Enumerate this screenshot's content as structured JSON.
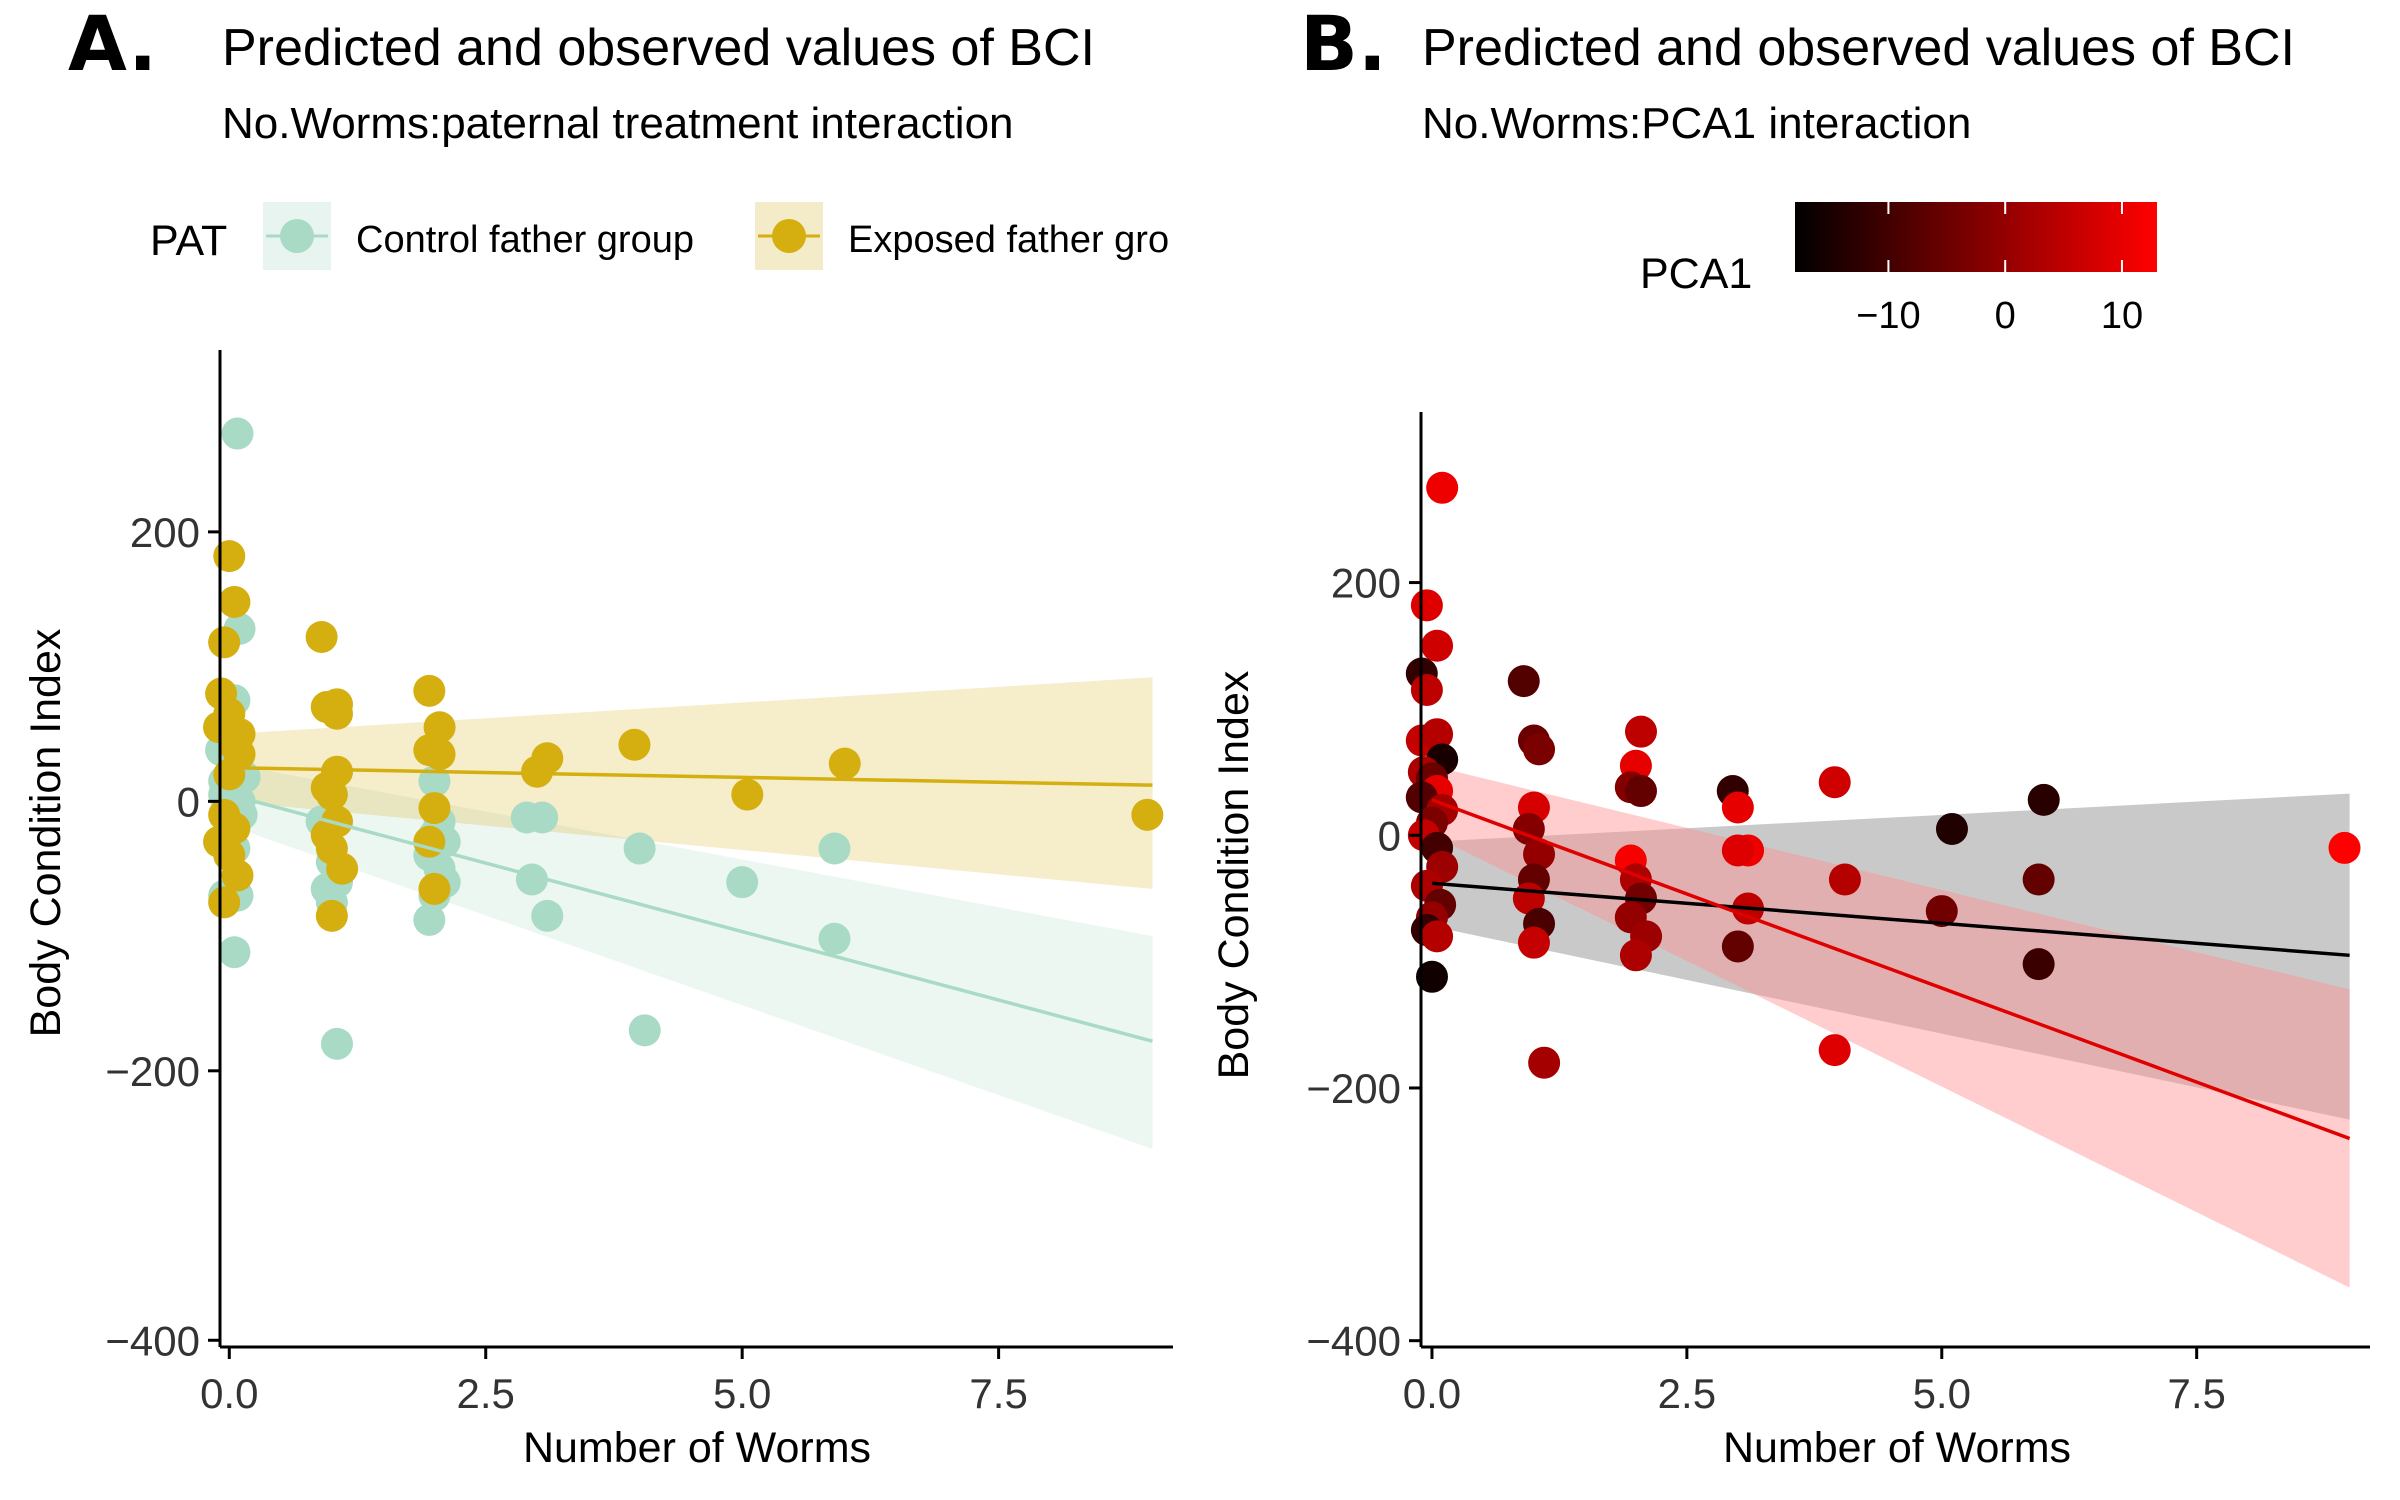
{
  "chart_data": [
    {
      "type": "scatter",
      "panel_label": "A.",
      "title": "Predicted and observed values of BCI",
      "subtitle": "No.Worms:paternal treatment interaction",
      "xlabel": "Number of Worms",
      "ylabel": "Body Condition Index",
      "xlim": [
        -0.5,
        9.2
      ],
      "ylim": [
        -405,
        335
      ],
      "xticks": [
        0.0,
        2.5,
        5.0,
        7.5
      ],
      "xtick_labels": [
        "0.0",
        "2.5",
        "5.0",
        "7.5"
      ],
      "yticks": [
        200,
        0,
        -200,
        -400
      ],
      "ytick_labels": [
        "200",
        "0",
        "−200",
        "−400"
      ],
      "grid": false,
      "legend": {
        "title": "PAT",
        "position": "top",
        "entries": [
          {
            "label": "Control father group",
            "color": "#a8dac6"
          },
          {
            "label": "Exposed father gro",
            "color": "#d4af0f"
          }
        ]
      },
      "series": [
        {
          "name": "Control father group",
          "color": "#a8dac6",
          "fit": {
            "x": [
              0,
              9
            ],
            "y": [
              5,
              -178
            ],
            "lower": [
              -18,
              -258
            ],
            "upper": [
              28,
              -100
            ]
          },
          "points": [
            [
              0.08,
              273
            ],
            [
              0.1,
              128
            ],
            [
              0.05,
              75
            ],
            [
              -0.08,
              38
            ],
            [
              0.0,
              40
            ],
            [
              0.05,
              30
            ],
            [
              -0.05,
              5
            ],
            [
              0.1,
              0
            ],
            [
              0.12,
              -10
            ],
            [
              0.05,
              -35
            ],
            [
              -0.05,
              -70
            ],
            [
              0.08,
              -70
            ],
            [
              0.05,
              -112
            ],
            [
              -0.05,
              15
            ],
            [
              0.15,
              18
            ],
            [
              0.9,
              -15
            ],
            [
              1.0,
              -45
            ],
            [
              1.05,
              -60
            ],
            [
              0.95,
              -65
            ],
            [
              1.0,
              -75
            ],
            [
              1.05,
              -180
            ],
            [
              2.0,
              15
            ],
            [
              2.05,
              -15
            ],
            [
              2.1,
              -30
            ],
            [
              1.95,
              -40
            ],
            [
              2.05,
              -50
            ],
            [
              2.1,
              -60
            ],
            [
              2.0,
              -70
            ],
            [
              1.95,
              -88
            ],
            [
              2.0,
              -25
            ],
            [
              2.9,
              -12
            ],
            [
              3.05,
              -12
            ],
            [
              2.95,
              -58
            ],
            [
              3.1,
              -85
            ],
            [
              4.0,
              -35
            ],
            [
              4.05,
              -170
            ],
            [
              5.0,
              -60
            ],
            [
              5.9,
              -35
            ],
            [
              5.9,
              -102
            ]
          ]
        },
        {
          "name": "Exposed father gro",
          "color": "#d4af0f",
          "fit": {
            "x": [
              0,
              9
            ],
            "y": [
              25,
              12
            ],
            "lower": [
              0,
              -65
            ],
            "upper": [
              50,
              92
            ]
          },
          "points": [
            [
              0.0,
              182
            ],
            [
              0.05,
              148
            ],
            [
              -0.05,
              118
            ],
            [
              -0.08,
              80
            ],
            [
              0.0,
              65
            ],
            [
              -0.1,
              55
            ],
            [
              0.1,
              50
            ],
            [
              0.05,
              42
            ],
            [
              0.1,
              35
            ],
            [
              0.0,
              20
            ],
            [
              -0.05,
              -10
            ],
            [
              0.05,
              -20
            ],
            [
              -0.1,
              -30
            ],
            [
              0.0,
              -40
            ],
            [
              0.08,
              -55
            ],
            [
              -0.05,
              -75
            ],
            [
              0.9,
              122
            ],
            [
              0.95,
              70
            ],
            [
              1.05,
              72
            ],
            [
              1.05,
              65
            ],
            [
              1.05,
              22
            ],
            [
              0.95,
              10
            ],
            [
              1.0,
              5
            ],
            [
              1.05,
              -15
            ],
            [
              0.95,
              -25
            ],
            [
              1.0,
              -35
            ],
            [
              1.1,
              -50
            ],
            [
              1.0,
              -85
            ],
            [
              1.95,
              82
            ],
            [
              2.05,
              55
            ],
            [
              1.95,
              38
            ],
            [
              2.05,
              35
            ],
            [
              2.0,
              -5
            ],
            [
              1.95,
              -30
            ],
            [
              2.0,
              -65
            ],
            [
              3.0,
              22
            ],
            [
              3.1,
              32
            ],
            [
              3.95,
              42
            ],
            [
              5.05,
              5
            ],
            [
              6.0,
              28
            ],
            [
              8.95,
              -10
            ]
          ]
        }
      ]
    },
    {
      "type": "scatter",
      "panel_label": "B.",
      "title": "Predicted and observed values of BCI",
      "subtitle": "No.Worms:PCA1 interaction",
      "xlabel": "Number of Worms",
      "ylabel": "Body Condition Index",
      "xlim": [
        -0.5,
        9.2
      ],
      "ylim": [
        -405,
        335
      ],
      "xticks": [
        0.0,
        2.5,
        5.0,
        7.5
      ],
      "xtick_labels": [
        "0.0",
        "2.5",
        "5.0",
        "7.5"
      ],
      "yticks": [
        200,
        0,
        -200,
        -400
      ],
      "ytick_labels": [
        "200",
        "0",
        "−200",
        "−400"
      ],
      "grid": false,
      "color_scale": {
        "title": "PCA1",
        "position": "top",
        "range": [
          -18,
          13
        ],
        "ticks": [
          -10,
          0,
          10
        ],
        "tick_labels": [
          "−10",
          "0",
          "10"
        ],
        "low_color": "#000000",
        "high_color": "#ff0000"
      },
      "fits": [
        {
          "color": "#000000",
          "band_color": "#888888",
          "x": [
            0,
            9
          ],
          "y": [
            -38,
            -95
          ],
          "lower": [
            -72,
            -225
          ],
          "upper": [
            -5,
            33
          ]
        },
        {
          "color": "#e00000",
          "band_color": "#ff9090",
          "x": [
            0,
            9
          ],
          "y": [
            28,
            -240
          ],
          "lower": [
            0,
            -358
          ],
          "upper": [
            55,
            -122
          ]
        }
      ],
      "points": [
        [
          0.1,
          275,
          11
        ],
        [
          -0.05,
          182,
          9
        ],
        [
          0.05,
          150,
          7
        ],
        [
          -0.1,
          128,
          -12
        ],
        [
          -0.05,
          115,
          5
        ],
        [
          -0.1,
          75,
          6
        ],
        [
          0.05,
          80,
          4
        ],
        [
          0.1,
          60,
          -15
        ],
        [
          -0.08,
          50,
          3
        ],
        [
          0.0,
          45,
          -5
        ],
        [
          0.05,
          35,
          10
        ],
        [
          -0.1,
          30,
          -8
        ],
        [
          0.1,
          20,
          2
        ],
        [
          0.0,
          10,
          -3
        ],
        [
          -0.08,
          0,
          6
        ],
        [
          0.05,
          -10,
          -10
        ],
        [
          0.1,
          -25,
          1
        ],
        [
          -0.05,
          -40,
          3
        ],
        [
          0.08,
          -55,
          -6
        ],
        [
          0.0,
          -65,
          0
        ],
        [
          -0.05,
          -75,
          -12
        ],
        [
          0.05,
          -80,
          4
        ],
        [
          0.0,
          -112,
          -16
        ],
        [
          0.9,
          122,
          -8
        ],
        [
          1.0,
          75,
          -5
        ],
        [
          1.05,
          68,
          -3
        ],
        [
          1.0,
          22,
          8
        ],
        [
          0.95,
          5,
          -2
        ],
        [
          1.05,
          -15,
          0
        ],
        [
          1.0,
          -35,
          -6
        ],
        [
          0.95,
          -50,
          5
        ],
        [
          1.05,
          -70,
          -9
        ],
        [
          1.0,
          -85,
          6
        ],
        [
          1.1,
          -180,
          2
        ],
        [
          2.05,
          82,
          5
        ],
        [
          2.0,
          55,
          10
        ],
        [
          1.95,
          38,
          -2
        ],
        [
          2.05,
          35,
          -6
        ],
        [
          1.95,
          -20,
          12
        ],
        [
          2.0,
          -35,
          3
        ],
        [
          2.05,
          -50,
          -4
        ],
        [
          1.95,
          -65,
          0
        ],
        [
          2.1,
          -80,
          1
        ],
        [
          2.0,
          -95,
          3
        ],
        [
          2.95,
          35,
          -12
        ],
        [
          3.0,
          22,
          10
        ],
        [
          3.1,
          -12,
          11
        ],
        [
          3.0,
          -12,
          9
        ],
        [
          3.1,
          -58,
          5
        ],
        [
          3.0,
          -88,
          -6
        ],
        [
          3.95,
          42,
          7
        ],
        [
          4.05,
          -35,
          4
        ],
        [
          3.95,
          -170,
          9
        ],
        [
          5.1,
          5,
          -14
        ],
        [
          5.0,
          -60,
          -4
        ],
        [
          6.0,
          28,
          -13
        ],
        [
          5.95,
          -35,
          -6
        ],
        [
          5.95,
          -102,
          -11
        ],
        [
          8.95,
          -10,
          13
        ]
      ]
    }
  ]
}
